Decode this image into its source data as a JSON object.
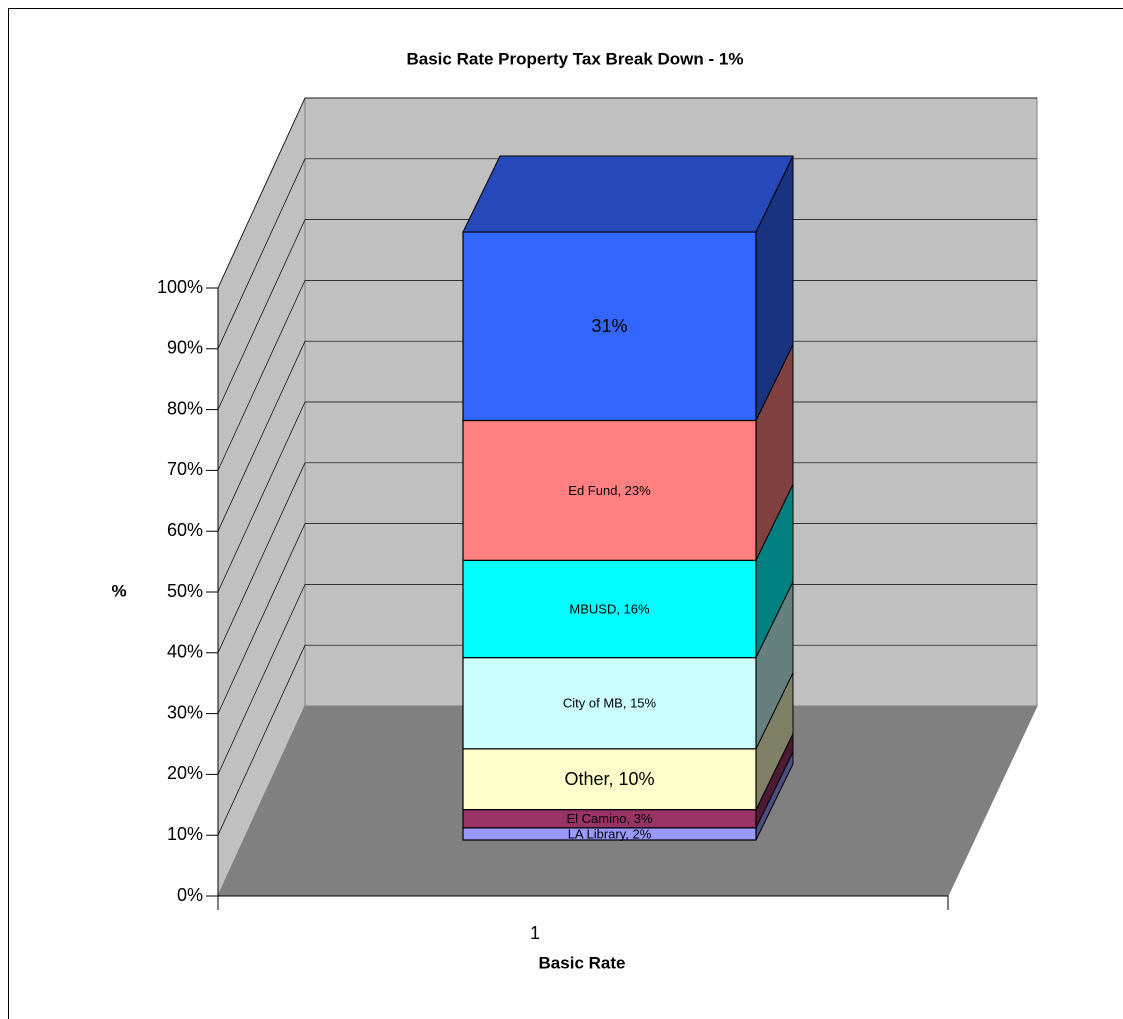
{
  "chart_data": {
    "type": "bar3d_stacked",
    "title": "Basic Rate Property Tax Break Down - 1%",
    "y_label": "%",
    "x_label": "Basic Rate",
    "categories": [
      "1"
    ],
    "series": [
      {
        "name": "LA Library",
        "color": "#9999ff",
        "values": [
          2
        ],
        "value_labels": [
          "LA Library, 2%"
        ]
      },
      {
        "name": "El Camino",
        "color": "#993366",
        "values": [
          3
        ],
        "value_labels": [
          "El Camino, 3%"
        ]
      },
      {
        "name": "Other",
        "color": "#ffffcc",
        "values": [
          10
        ],
        "value_labels": [
          "Other, 10%"
        ]
      },
      {
        "name": "City of MB",
        "color": "#ccffff",
        "values": [
          15
        ],
        "value_labels": [
          "City of MB, 15%"
        ]
      },
      {
        "name": "MBUSD",
        "color": "#00ffff",
        "values": [
          16
        ],
        "value_labels": [
          "MBUSD, 16%"
        ]
      },
      {
        "name": "Ed Fund",
        "color": "#ff8080",
        "values": [
          23
        ],
        "value_labels": [
          "Ed Fund, 23%"
        ]
      },
      {
        "color": "#3366ff",
        "values": [
          31
        ],
        "value_labels": [
          "31%"
        ]
      }
    ],
    "ylim": [
      0,
      100
    ],
    "yticks": [
      {
        "value": 0,
        "label": "0%"
      },
      {
        "value": 10,
        "label": "10%"
      },
      {
        "value": 20,
        "label": "20%"
      },
      {
        "value": 30,
        "label": "30%"
      },
      {
        "value": 40,
        "label": "40%"
      },
      {
        "value": 50,
        "label": "50%"
      },
      {
        "value": 60,
        "label": "60%"
      },
      {
        "value": 70,
        "label": "70%"
      },
      {
        "value": 80,
        "label": "80%"
      },
      {
        "value": 90,
        "label": "90%"
      },
      {
        "value": 100,
        "label": "100%"
      }
    ],
    "grid": true
  }
}
